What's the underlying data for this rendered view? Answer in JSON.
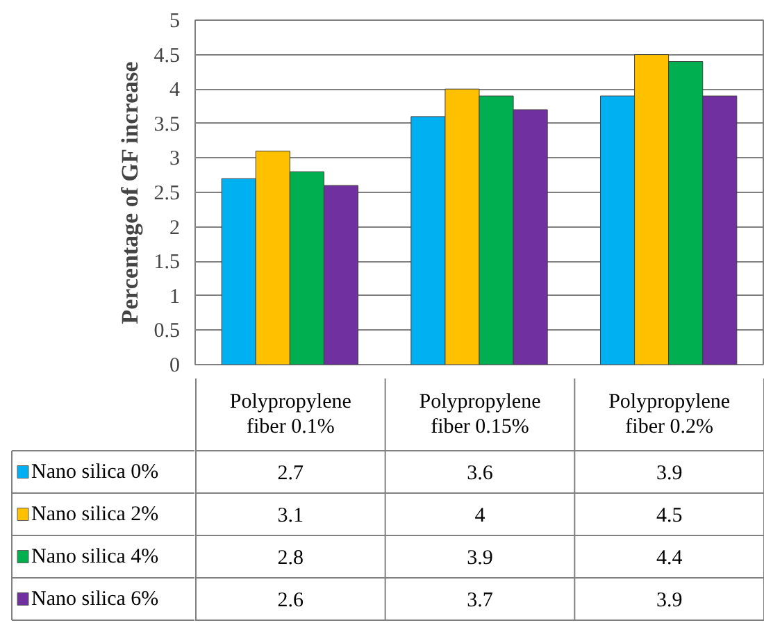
{
  "chart_data": {
    "type": "bar",
    "ylabel": "Percentage of GF increase",
    "categories": [
      "Polypropylene fiber 0.1%",
      "Polypropylene fiber 0.15%",
      "Polypropylene fiber 0.2%"
    ],
    "series": [
      {
        "name": "Nano silica 0%",
        "color": "#00b0f0",
        "values": [
          2.7,
          3.6,
          3.9
        ]
      },
      {
        "name": "Nano silica 2%",
        "color": "#ffc000",
        "values": [
          3.1,
          4,
          4.5
        ]
      },
      {
        "name": "Nano silica 4%",
        "color": "#00b050",
        "values": [
          2.8,
          3.9,
          4.4
        ]
      },
      {
        "name": "Nano silica 6%",
        "color": "#7030a0",
        "values": [
          2.6,
          3.7,
          3.9
        ]
      }
    ],
    "ylim": [
      0,
      5
    ],
    "yticks": [
      0,
      0.5,
      1,
      1.5,
      2,
      2.5,
      3,
      3.5,
      4,
      4.5,
      5
    ],
    "grid": "y",
    "legend": "bottom",
    "data_labels": true
  }
}
